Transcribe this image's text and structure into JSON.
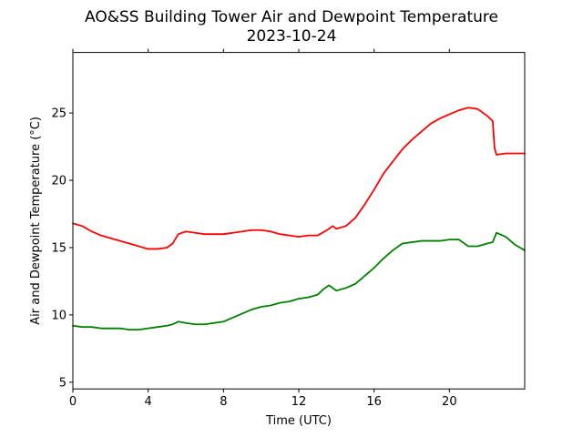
{
  "chart_data": {
    "type": "line",
    "title": "AO&SS Building Tower Air and Dewpoint Temperature",
    "subtitle": "2023-10-24",
    "xlabel": "Time (UTC)",
    "ylabel": "Air and Dewpoint Temperature (°C)",
    "xlim": [
      0,
      24
    ],
    "ylim": [
      4.5,
      29.5
    ],
    "x_ticks": [
      0,
      4,
      8,
      12,
      16,
      20
    ],
    "x_tick_labels": [
      "0",
      "4",
      "8",
      "12",
      "16",
      "20"
    ],
    "y_ticks": [
      5,
      10,
      15,
      20,
      25
    ],
    "y_tick_labels": [
      "5",
      "10",
      "15",
      "20",
      "25"
    ],
    "grid": false,
    "legend": "none",
    "series": [
      {
        "color": "#ff0000",
        "x": [
          0,
          0.5,
          1,
          1.5,
          2,
          2.5,
          3,
          3.5,
          4,
          4.5,
          5,
          5.3,
          5.6,
          6,
          6.5,
          7,
          7.5,
          8,
          8.5,
          9,
          9.5,
          10,
          10.5,
          11,
          11.5,
          12,
          12.5,
          13,
          13.5,
          13.8,
          14,
          14.5,
          15,
          15.5,
          16,
          16.5,
          17,
          17.5,
          18,
          18.5,
          19,
          19.5,
          20,
          20.5,
          21,
          21.5,
          22,
          22.3,
          22.4,
          22.5,
          23,
          23.5,
          24
        ],
        "values": [
          16.8,
          16.6,
          16.2,
          15.9,
          15.7,
          15.5,
          15.3,
          15.1,
          14.9,
          14.9,
          15.0,
          15.3,
          16.0,
          16.2,
          16.1,
          16.0,
          16.0,
          16.0,
          16.1,
          16.2,
          16.3,
          16.3,
          16.2,
          16.0,
          15.9,
          15.8,
          15.9,
          15.9,
          16.3,
          16.6,
          16.4,
          16.6,
          17.2,
          18.2,
          19.3,
          20.5,
          21.4,
          22.3,
          23.0,
          23.6,
          24.2,
          24.6,
          24.9,
          25.2,
          25.4,
          25.3,
          24.8,
          24.4,
          22.4,
          21.9,
          22.0,
          22.0,
          22.0
        ]
      },
      {
        "color": "#008000",
        "x": [
          0,
          0.5,
          1,
          1.5,
          2,
          2.5,
          3,
          3.5,
          4,
          4.5,
          5,
          5.3,
          5.6,
          6,
          6.5,
          7,
          7.5,
          8,
          8.5,
          9,
          9.5,
          10,
          10.5,
          11,
          11.5,
          12,
          12.5,
          13,
          13.3,
          13.6,
          14,
          14.5,
          15,
          15.5,
          16,
          16.5,
          17,
          17.5,
          18,
          18.5,
          19,
          19.5,
          20,
          20.5,
          21,
          21.5,
          22,
          22.3,
          22.5,
          23,
          23.5,
          24
        ],
        "values": [
          9.2,
          9.1,
          9.1,
          9.0,
          9.0,
          9.0,
          8.9,
          8.9,
          9.0,
          9.1,
          9.2,
          9.3,
          9.5,
          9.4,
          9.3,
          9.3,
          9.4,
          9.5,
          9.8,
          10.1,
          10.4,
          10.6,
          10.7,
          10.9,
          11.0,
          11.2,
          11.3,
          11.5,
          11.9,
          12.2,
          11.8,
          12.0,
          12.3,
          12.9,
          13.5,
          14.2,
          14.8,
          15.3,
          15.4,
          15.5,
          15.5,
          15.5,
          15.6,
          15.6,
          15.1,
          15.1,
          15.3,
          15.4,
          16.1,
          15.8,
          15.2,
          14.8
        ]
      }
    ]
  }
}
